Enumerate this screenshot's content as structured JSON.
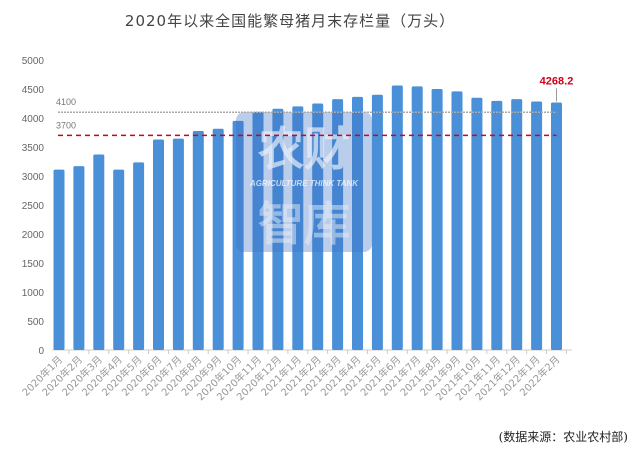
{
  "chart_data": {
    "type": "bar",
    "title": "2020年以来全国能繁母猪月末存栏量（万头）",
    "xlabel": "",
    "ylabel": "",
    "ylim": [
      0,
      5000
    ],
    "yticks": [
      0,
      500,
      1000,
      1500,
      2000,
      2500,
      3000,
      3500,
      4000,
      4500,
      5000
    ],
    "grid": false,
    "categories": [
      "2020年1月",
      "2020年2月",
      "2020年3月",
      "2020年4月",
      "2020年5月",
      "2020年6月",
      "2020年7月",
      "2020年8月",
      "2020年9月",
      "2020年10月",
      "2020年11月",
      "2020年12月",
      "2021年1月",
      "2021年2月",
      "2021年3月",
      "2021年4月",
      "2021年5月",
      "2021年6月",
      "2021年7月",
      "2021年8月",
      "2021年9月",
      "2021年10月",
      "2021年11月",
      "2021年12月",
      "2022年1月",
      "2022年2月"
    ],
    "values": [
      3110,
      3170,
      3370,
      3110,
      3235,
      3630,
      3645,
      3775,
      3815,
      3950,
      4105,
      4160,
      4200,
      4250,
      4325,
      4365,
      4400,
      4560,
      4545,
      4500,
      4460,
      4350,
      4295,
      4325,
      4285,
      4268.2
    ],
    "reference_lines": [
      {
        "value": 4100,
        "label": "4100",
        "color": "#aaaaaa",
        "style": "dotted"
      },
      {
        "value": 3700,
        "label": "3700",
        "color": "#d0021b",
        "style": "dashed"
      }
    ],
    "annotations": [
      {
        "category": "2022年2月",
        "text": "4268.2",
        "color": "#d0021b"
      }
    ],
    "bar_color": "#4a90d9",
    "source": "(数据来源：农业农村部)",
    "watermark": {
      "cn_top": "农财",
      "en": "AGRICULTURE THINK TANK",
      "cn_bottom": "智库"
    }
  }
}
